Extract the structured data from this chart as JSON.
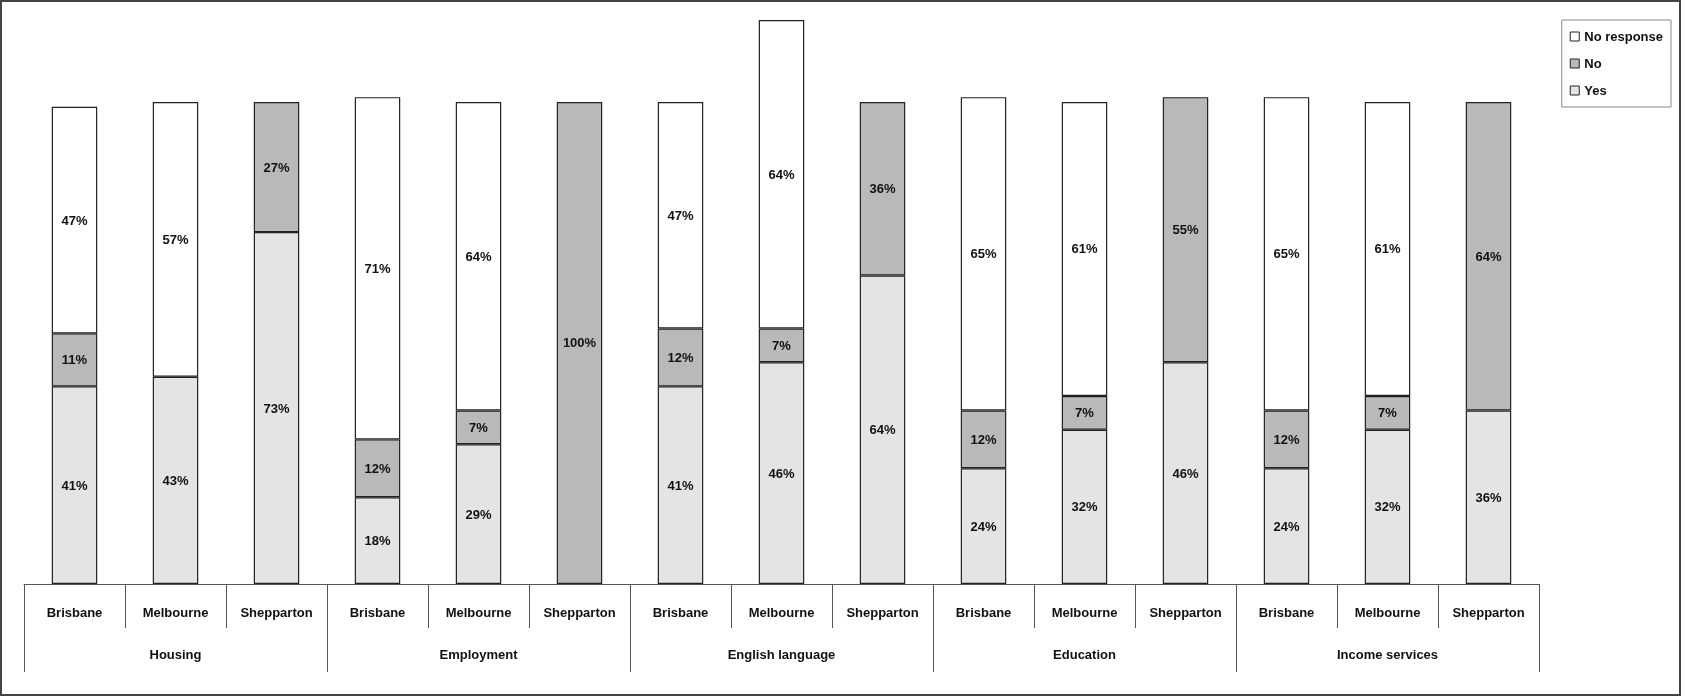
{
  "chart_data": {
    "type": "bar",
    "stacked": true,
    "legend": "top right",
    "categories": [
      "Brisbane",
      "Melbourne",
      "Shepparton",
      "Brisbane",
      "Melbourne",
      "Shepparton",
      "Brisbane",
      "Melbourne",
      "Shepparton",
      "Brisbane",
      "Melbourne",
      "Shepparton",
      "Brisbane",
      "Melbourne",
      "Shepparton"
    ],
    "annotations": [
      "Housing",
      "Employment",
      "English language",
      "Education",
      "Income services"
    ],
    "series": [
      {
        "name": "Yes",
        "color": "#e4e4e4",
        "values": [
          41,
          43,
          73,
          18,
          29,
          null,
          41,
          46,
          64,
          24,
          32,
          46,
          24,
          32,
          36
        ],
        "value_labels": [
          "41%",
          "43%",
          "73%",
          "18%",
          "29%",
          null,
          "41%",
          "46%",
          "64%",
          "24%",
          "32%",
          "46%",
          "24%",
          "32%",
          "36%"
        ]
      },
      {
        "name": "No",
        "color": "#b9b9b9",
        "values": [
          11,
          null,
          27,
          12,
          7,
          100,
          12,
          7,
          36,
          12,
          7,
          55,
          12,
          7,
          64
        ],
        "value_labels": [
          "11%",
          null,
          "27%",
          "12%",
          "7%",
          "100%",
          "12%",
          "7%",
          "36%",
          "12%",
          "7%",
          "55%",
          "12%",
          "7%",
          "64%"
        ]
      },
      {
        "name": "No response",
        "color": "#ffffff",
        "values": [
          47,
          57,
          null,
          71,
          64,
          null,
          47,
          64,
          null,
          65,
          61,
          null,
          65,
          61,
          null
        ],
        "value_labels": [
          "47%",
          "57%",
          null,
          "71%",
          "64%",
          null,
          "47%",
          "64%",
          null,
          "65%",
          "61%",
          null,
          "65%",
          "61%",
          null
        ]
      }
    ]
  }
}
